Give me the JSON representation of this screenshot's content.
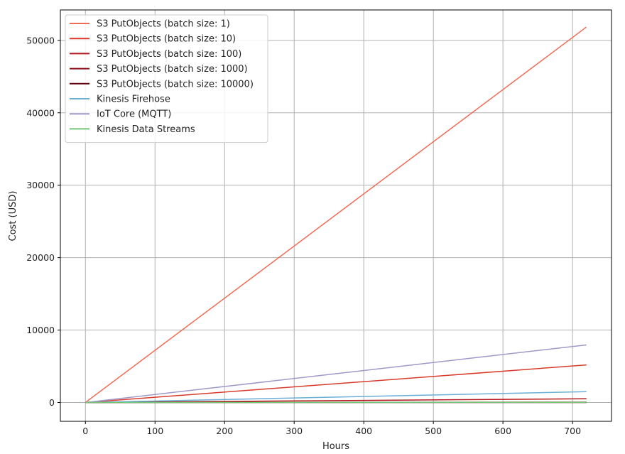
{
  "chart_data": {
    "type": "line",
    "title": "",
    "xlabel": "Hours",
    "ylabel": "Cost (USD)",
    "xlim": [
      -36,
      756
    ],
    "ylim": [
      -2600,
      54200
    ],
    "xticks": [
      0,
      100,
      200,
      300,
      400,
      500,
      600,
      700
    ],
    "yticks": [
      0,
      10000,
      20000,
      30000,
      40000,
      50000
    ],
    "grid": true,
    "legend_position": "upper left",
    "x": [
      0,
      720
    ],
    "series": [
      {
        "name": "S3 PutObjects (batch size: 1)",
        "color": "#ec6d54",
        "values": [
          0,
          51840
        ]
      },
      {
        "name": "S3 PutObjects (batch size: 10)",
        "color": "#d93a2b",
        "values": [
          0,
          5184
        ]
      },
      {
        "name": "S3 PutObjects (batch size: 100)",
        "color": "#b5181d",
        "values": [
          0,
          518
        ]
      },
      {
        "name": "S3 PutObjects (batch size: 1000)",
        "color": "#8c0a1d",
        "values": [
          0,
          52
        ]
      },
      {
        "name": "S3 PutObjects (batch size: 10000)",
        "color": "#67000d",
        "values": [
          0,
          5
        ]
      },
      {
        "name": "Kinesis Firehose",
        "color": "#6baed6",
        "values": [
          0,
          1500
        ]
      },
      {
        "name": "IoT Core (MQTT)",
        "color": "#9e9ac8",
        "values": [
          0,
          7950
        ]
      },
      {
        "name": "Kinesis Data Streams",
        "color": "#74c476",
        "values": [
          0,
          30
        ]
      }
    ]
  }
}
